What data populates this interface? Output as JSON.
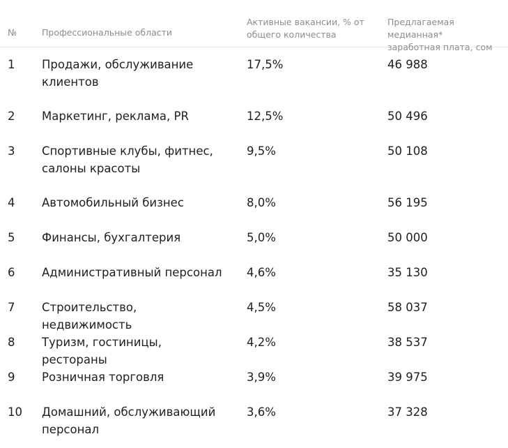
{
  "header": {
    "num": "№",
    "area": "Профессиональные области",
    "share_line1": "Активные вакансии, % от",
    "share_line2": "общего количества",
    "salary_line1": "Предлагаемая медианная*",
    "salary_line2": "заработная плата, сом"
  },
  "rows": [
    {
      "num": "1",
      "area_line1": "Продажи, обслуживание",
      "area_line2": "клиентов",
      "share": "17,5%",
      "salary": "46 988"
    },
    {
      "num": "2",
      "area_line1": "Маркетинг, реклама, PR",
      "area_line2": "",
      "share": "12,5%",
      "salary": "50 496"
    },
    {
      "num": "3",
      "area_line1": "Спортивные клубы, фитнес,",
      "area_line2": "салоны красоты",
      "share": "9,5%",
      "salary": "50 108"
    },
    {
      "num": "4",
      "area_line1": "Автомобильный бизнес",
      "area_line2": "",
      "share": "8,0%",
      "salary": "56 195"
    },
    {
      "num": "5",
      "area_line1": "Финансы, бухгалтерия",
      "area_line2": "",
      "share": "5,0%",
      "salary": "50 000"
    },
    {
      "num": "6",
      "area_line1": "Административный персонал",
      "area_line2": "",
      "share": "4,6%",
      "salary": "35 130"
    },
    {
      "num": "7",
      "area_line1": "Строительство, недвижимость",
      "area_line2": "",
      "share": "4,5%",
      "salary": "58 037"
    },
    {
      "num": "8",
      "area_line1": "Туризм, гостиницы, рестораны",
      "area_line2": "",
      "share": "4,2%",
      "salary": "38 537"
    },
    {
      "num": "9",
      "area_line1": "Розничная торговля",
      "area_line2": "",
      "share": "3,9%",
      "salary": "39 975"
    },
    {
      "num": "10",
      "area_line1": "Домашний, обслуживающий",
      "area_line2": "персонал",
      "share": "3,6%",
      "salary": "37 328"
    }
  ]
}
